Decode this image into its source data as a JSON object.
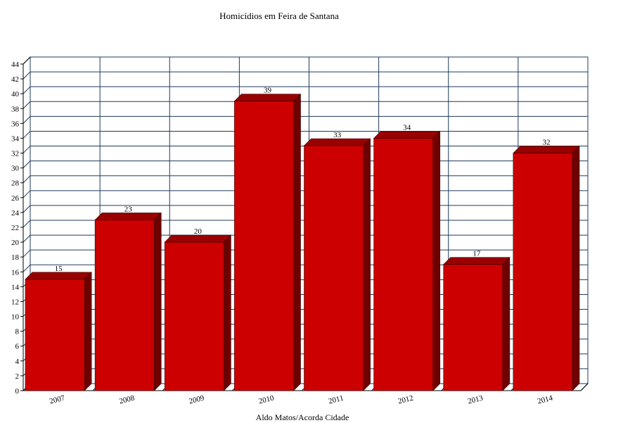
{
  "chart_data": {
    "type": "bar",
    "title": "Homicídios em Feira de Santana",
    "footer": "Aldo Matos/Acorda Cidade",
    "categories": [
      "2007",
      "2008",
      "2009",
      "2010",
      "2011",
      "2012",
      "2013",
      "2014"
    ],
    "values": [
      15,
      23,
      20,
      39,
      33,
      34,
      17,
      32
    ],
    "ylim": [
      0,
      44
    ],
    "ytick_step": 2,
    "grid": true,
    "legend": "none",
    "colors": {
      "bar_front": "#cc0000",
      "bar_top": "#990000",
      "bar_side": "#6e0000",
      "grid": "#1f3a5c",
      "axis": "#000000"
    }
  }
}
